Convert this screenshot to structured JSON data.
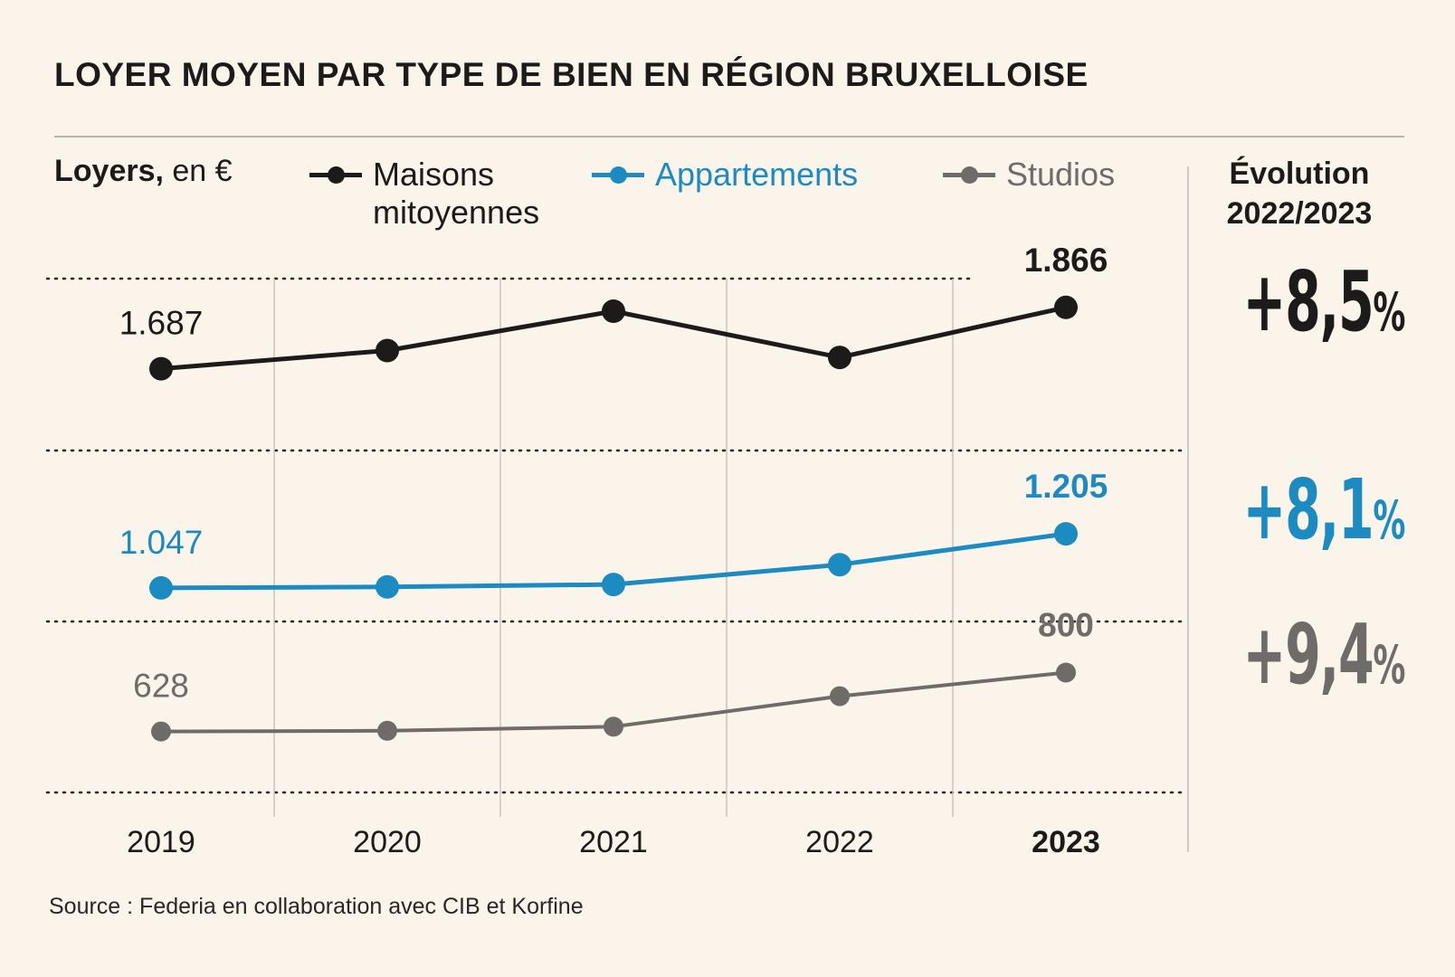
{
  "title": "LOYER MOYEN PAR TYPE DE BIEN EN RÉGION BRUXELLOISE",
  "units": {
    "bold": "Loyers,",
    "rest": " en €"
  },
  "legend": [
    {
      "line1": "Maisons",
      "line2": "mitoyennes",
      "color": "#1d1a1a"
    },
    {
      "line1": "Appartements",
      "line2": "",
      "color": "#1b8bc2"
    },
    {
      "line1": "Studios",
      "line2": "",
      "color": "#6e6b69"
    }
  ],
  "evolution": {
    "header_line1": "Évolution",
    "header_line2": "2022/2023",
    "items": [
      {
        "number": "+8,5",
        "percent_sign": "%",
        "color": "#1d1a1a"
      },
      {
        "number": "+8,1",
        "percent_sign": "%",
        "color": "#1b8bc2"
      },
      {
        "number": "+9,4",
        "percent_sign": "%",
        "color": "#6e6b69"
      }
    ]
  },
  "source": "Source : Federia en collaboration avec CIB et Korfine",
  "chart_data": {
    "type": "line",
    "title": "LOYER MOYEN PAR TYPE DE BIEN EN RÉGION BRUXELLOISE",
    "categories": [
      "2019",
      "2020",
      "2021",
      "2022",
      "2023"
    ],
    "ylabel": "Loyers, en €",
    "ylim": [
      450,
      1950
    ],
    "grid": "horizontal dotted + vertical between years",
    "series": [
      {
        "name": "Maisons mitoyennes",
        "color": "#1d1a1a",
        "values": [
          1687,
          1740,
          1855,
          1720,
          1866
        ],
        "labels": [
          {
            "index": 0,
            "text": "1.687"
          },
          {
            "index": 4,
            "text": "1.866"
          }
        ]
      },
      {
        "name": "Appartements",
        "color": "#1b8bc2",
        "values": [
          1047,
          1050,
          1057,
          1115,
          1205
        ],
        "labels": [
          {
            "index": 0,
            "text": "1.047"
          },
          {
            "index": 4,
            "text": "1.205"
          }
        ]
      },
      {
        "name": "Studios",
        "color": "#6e6b69",
        "values": [
          628,
          630,
          642,
          731,
          800
        ],
        "labels": [
          {
            "index": 0,
            "text": "628"
          },
          {
            "index": 4,
            "text": "800"
          }
        ]
      }
    ]
  }
}
